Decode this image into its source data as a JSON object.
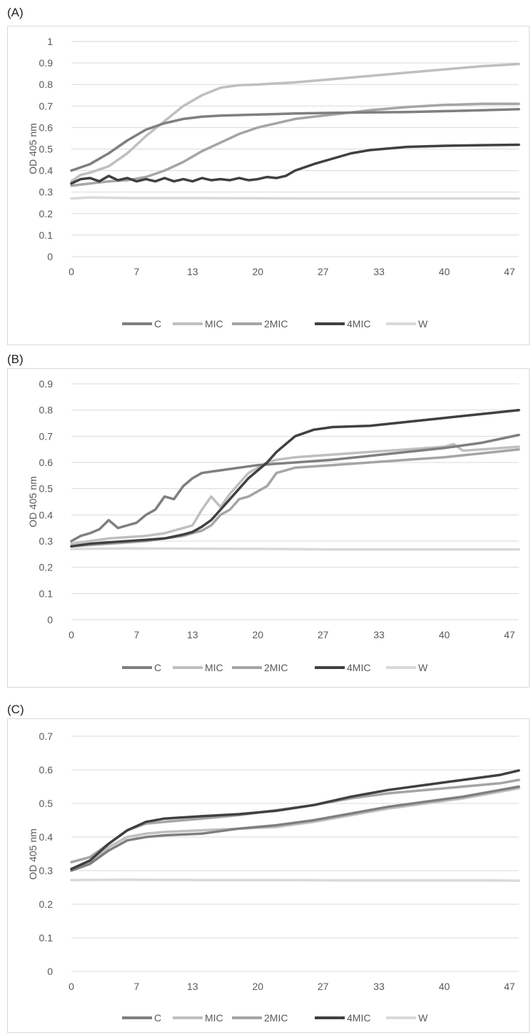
{
  "panels": [
    {
      "label": "(A)"
    },
    {
      "label": "(B)"
    },
    {
      "label": "(C)"
    }
  ],
  "colors": {
    "C": "#7f7f7f",
    "MIC": "#bfbfbf",
    "2MIC": "#a5a5a5",
    "4MIC": "#404040",
    "W": "#d9d9d9",
    "grid": "#d9d9d9",
    "axis": "#595959"
  },
  "chart_data": [
    {
      "type": "line",
      "ylabel": "OD 405 nm",
      "xlabel": "",
      "title": "",
      "xlim": [
        0,
        48
      ],
      "ylim": [
        0,
        1
      ],
      "yticks": [
        "0",
        "0.1",
        "0.2",
        "0.3",
        "0.4",
        "0.5",
        "0.6",
        "0.7",
        "0.8",
        "0.9",
        "1"
      ],
      "xticks": [
        "0",
        "7",
        "13",
        "20",
        "27",
        "33",
        "40",
        "47"
      ],
      "grid": true,
      "legend": "bottom",
      "series": [
        {
          "name": "C",
          "x": [
            0,
            2,
            4,
            6,
            8,
            10,
            12,
            14,
            16,
            20,
            24,
            28,
            32,
            36,
            40,
            44,
            48
          ],
          "values": [
            0.4,
            0.43,
            0.48,
            0.54,
            0.59,
            0.62,
            0.64,
            0.65,
            0.655,
            0.66,
            0.665,
            0.668,
            0.67,
            0.672,
            0.676,
            0.68,
            0.685
          ]
        },
        {
          "name": "MIC",
          "x": [
            0,
            1,
            2,
            4,
            6,
            8,
            10,
            12,
            14,
            16,
            18,
            20,
            24,
            28,
            32,
            36,
            40,
            44,
            48
          ],
          "values": [
            0.35,
            0.38,
            0.39,
            0.42,
            0.48,
            0.56,
            0.63,
            0.7,
            0.75,
            0.785,
            0.797,
            0.8,
            0.81,
            0.825,
            0.84,
            0.855,
            0.87,
            0.885,
            0.895
          ]
        },
        {
          "name": "2MIC",
          "x": [
            0,
            2,
            4,
            6,
            8,
            10,
            12,
            14,
            16,
            18,
            20,
            22,
            24,
            26,
            28,
            32,
            36,
            40,
            44,
            48
          ],
          "values": [
            0.33,
            0.34,
            0.35,
            0.355,
            0.37,
            0.4,
            0.44,
            0.49,
            0.53,
            0.57,
            0.6,
            0.62,
            0.64,
            0.65,
            0.66,
            0.68,
            0.695,
            0.705,
            0.71,
            0.71
          ]
        },
        {
          "name": "4MIC",
          "x": [
            0,
            1,
            2,
            3,
            4,
            5,
            6,
            7,
            8,
            9,
            10,
            11,
            12,
            13,
            14,
            15,
            16,
            17,
            18,
            19,
            20,
            21,
            22,
            23,
            24,
            26,
            28,
            30,
            32,
            36,
            40,
            44,
            48
          ],
          "values": [
            0.34,
            0.36,
            0.365,
            0.35,
            0.375,
            0.355,
            0.365,
            0.35,
            0.36,
            0.35,
            0.365,
            0.35,
            0.36,
            0.35,
            0.365,
            0.355,
            0.36,
            0.355,
            0.365,
            0.355,
            0.36,
            0.37,
            0.365,
            0.375,
            0.4,
            0.43,
            0.455,
            0.48,
            0.495,
            0.51,
            0.515,
            0.518,
            0.52
          ]
        },
        {
          "name": "W",
          "x": [
            0,
            2,
            6,
            12,
            20,
            28,
            36,
            44,
            48
          ],
          "values": [
            0.27,
            0.275,
            0.272,
            0.272,
            0.271,
            0.27,
            0.27,
            0.27,
            0.27
          ]
        }
      ]
    },
    {
      "type": "line",
      "ylabel": "OD 405 nm",
      "xlabel": "",
      "title": "",
      "xlim": [
        0,
        48
      ],
      "ylim": [
        0,
        0.9
      ],
      "yticks": [
        "0",
        "0.1",
        "0.2",
        "0.3",
        "0.4",
        "0.5",
        "0.6",
        "0.7",
        "0.8",
        "0.9"
      ],
      "xticks": [
        "0",
        "7",
        "13",
        "20",
        "27",
        "33",
        "40",
        "47"
      ],
      "grid": true,
      "legend": "bottom",
      "series": [
        {
          "name": "C",
          "x": [
            0,
            1,
            2,
            3,
            4,
            5,
            6,
            7,
            8,
            9,
            10,
            11,
            12,
            13,
            14,
            16,
            18,
            20,
            22,
            24,
            28,
            32,
            36,
            40,
            44,
            48
          ],
          "values": [
            0.3,
            0.32,
            0.33,
            0.345,
            0.38,
            0.35,
            0.36,
            0.37,
            0.4,
            0.42,
            0.47,
            0.46,
            0.51,
            0.54,
            0.56,
            0.57,
            0.58,
            0.59,
            0.595,
            0.6,
            0.61,
            0.625,
            0.64,
            0.655,
            0.675,
            0.705
          ]
        },
        {
          "name": "MIC",
          "x": [
            0,
            2,
            4,
            6,
            8,
            10,
            11,
            12,
            13,
            14,
            15,
            16,
            17,
            18,
            19,
            20,
            21,
            22,
            24,
            28,
            32,
            36,
            40,
            41,
            42,
            44,
            48
          ],
          "values": [
            0.29,
            0.3,
            0.31,
            0.315,
            0.32,
            0.33,
            0.34,
            0.35,
            0.36,
            0.42,
            0.47,
            0.43,
            0.48,
            0.52,
            0.56,
            0.58,
            0.6,
            0.61,
            0.62,
            0.63,
            0.64,
            0.65,
            0.66,
            0.67,
            0.645,
            0.65,
            0.66
          ]
        },
        {
          "name": "2MIC",
          "x": [
            0,
            4,
            8,
            10,
            12,
            13,
            14,
            15,
            16,
            17,
            18,
            19,
            20,
            21,
            22,
            24,
            28,
            32,
            36,
            40,
            44,
            48
          ],
          "values": [
            0.28,
            0.29,
            0.3,
            0.31,
            0.32,
            0.33,
            0.34,
            0.36,
            0.4,
            0.42,
            0.46,
            0.47,
            0.49,
            0.51,
            0.56,
            0.58,
            0.59,
            0.6,
            0.61,
            0.62,
            0.635,
            0.65
          ]
        },
        {
          "name": "4MIC",
          "x": [
            0,
            2,
            4,
            6,
            8,
            10,
            12,
            13,
            14,
            15,
            16,
            17,
            18,
            19,
            20,
            21,
            22,
            23,
            24,
            26,
            28,
            32,
            36,
            40,
            44,
            48
          ],
          "values": [
            0.28,
            0.29,
            0.295,
            0.3,
            0.305,
            0.31,
            0.325,
            0.335,
            0.355,
            0.38,
            0.42,
            0.46,
            0.5,
            0.54,
            0.57,
            0.6,
            0.64,
            0.67,
            0.7,
            0.725,
            0.735,
            0.74,
            0.755,
            0.77,
            0.785,
            0.8
          ]
        },
        {
          "name": "W",
          "x": [
            0,
            6,
            14,
            22,
            28,
            36,
            44,
            48
          ],
          "values": [
            0.27,
            0.272,
            0.271,
            0.27,
            0.268,
            0.268,
            0.268,
            0.268
          ]
        }
      ]
    },
    {
      "type": "line",
      "ylabel": "OD 405 nm",
      "xlabel": "",
      "title": "",
      "xlim": [
        0,
        48
      ],
      "ylim": [
        0,
        0.7
      ],
      "yticks": [
        "0",
        "0.1",
        "0.2",
        "0.3",
        "0.4",
        "0.5",
        "0.6",
        "0.7"
      ],
      "xticks": [
        "0",
        "7",
        "13",
        "20",
        "27",
        "33",
        "40",
        "47"
      ],
      "grid": true,
      "legend": "bottom",
      "series": [
        {
          "name": "C",
          "x": [
            0,
            2,
            4,
            6,
            8,
            10,
            14,
            18,
            22,
            26,
            30,
            34,
            38,
            42,
            46,
            48
          ],
          "values": [
            0.3,
            0.32,
            0.36,
            0.39,
            0.4,
            0.405,
            0.41,
            0.425,
            0.435,
            0.45,
            0.47,
            0.49,
            0.505,
            0.52,
            0.54,
            0.55
          ]
        },
        {
          "name": "MIC",
          "x": [
            0,
            2,
            4,
            6,
            8,
            10,
            14,
            18,
            22,
            26,
            30,
            34,
            38,
            42,
            46,
            48
          ],
          "values": [
            0.305,
            0.325,
            0.37,
            0.4,
            0.41,
            0.415,
            0.42,
            0.425,
            0.43,
            0.445,
            0.465,
            0.485,
            0.5,
            0.515,
            0.535,
            0.545
          ]
        },
        {
          "name": "2MIC",
          "x": [
            0,
            2,
            4,
            6,
            8,
            10,
            14,
            18,
            22,
            26,
            30,
            34,
            38,
            42,
            46,
            48
          ],
          "values": [
            0.325,
            0.34,
            0.38,
            0.42,
            0.44,
            0.445,
            0.455,
            0.465,
            0.48,
            0.495,
            0.515,
            0.53,
            0.54,
            0.55,
            0.56,
            0.57
          ]
        },
        {
          "name": "4MIC",
          "x": [
            0,
            2,
            4,
            6,
            8,
            10,
            14,
            18,
            22,
            26,
            30,
            34,
            38,
            42,
            46,
            48
          ],
          "values": [
            0.305,
            0.33,
            0.38,
            0.42,
            0.445,
            0.455,
            0.462,
            0.468,
            0.478,
            0.495,
            0.52,
            0.54,
            0.555,
            0.57,
            0.585,
            0.598
          ]
        },
        {
          "name": "W",
          "x": [
            0,
            6,
            14,
            22,
            28,
            36,
            44,
            48
          ],
          "values": [
            0.272,
            0.273,
            0.272,
            0.272,
            0.271,
            0.271,
            0.271,
            0.27
          ]
        }
      ]
    }
  ]
}
